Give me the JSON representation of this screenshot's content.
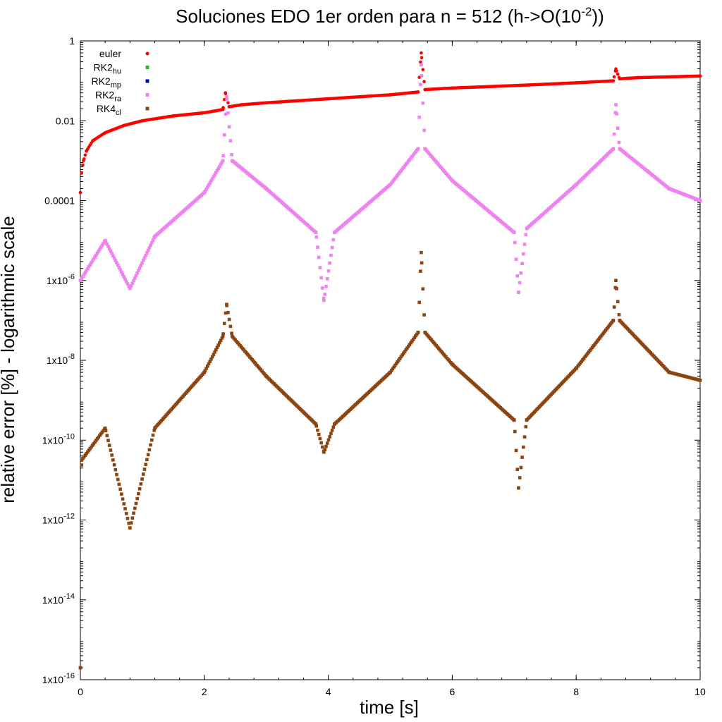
{
  "chart_data": {
    "type": "scatter",
    "title": {
      "main": "Soluciones EDO 1er orden para n = 512 (h->O(10",
      "sup": "-2",
      "tail": "))"
    },
    "xlabel": "time [s]",
    "ylabel": "relative error [%] - logarithmic scale",
    "x_range": [
      0,
      10
    ],
    "x_ticks": [
      {
        "value": 0,
        "label": "0"
      },
      {
        "value": 2,
        "label": "2"
      },
      {
        "value": 4,
        "label": "4"
      },
      {
        "value": 6,
        "label": "6"
      },
      {
        "value": 8,
        "label": "8"
      },
      {
        "value": 10,
        "label": "10"
      }
    ],
    "y_scale": "log",
    "y_range": [
      1e-16,
      1
    ],
    "y_ticks": [
      {
        "exp": 0,
        "label": "1"
      },
      {
        "exp": -2,
        "label": "0.01"
      },
      {
        "exp": -4,
        "label": "0.0001"
      },
      {
        "exp": -6,
        "label": "1x10",
        "sup": "-6"
      },
      {
        "exp": -8,
        "label": "1x10",
        "sup": "-8"
      },
      {
        "exp": -10,
        "label": "1x10",
        "sup": "-10"
      },
      {
        "exp": -12,
        "label": "1x10",
        "sup": "-12"
      },
      {
        "exp": -14,
        "label": "1x10",
        "sup": "-14"
      },
      {
        "exp": -16,
        "label": "1x10",
        "sup": "-16"
      }
    ],
    "grid": false,
    "legend": {
      "position": "top-left",
      "entries": [
        {
          "base": "euler",
          "sub": "",
          "color": "#ff0000"
        },
        {
          "base": "RK2",
          "sub": "hu",
          "color": "#00dd00"
        },
        {
          "base": "RK2",
          "sub": "mp",
          "color": "#0000cc"
        },
        {
          "base": "RK2",
          "sub": "ra",
          "color": "#ee82ee"
        },
        {
          "base": "RK4",
          "sub": "cl",
          "color": "#8b4513"
        }
      ]
    },
    "singularities": [
      0.8,
      3.93,
      7.07
    ],
    "jumps": [
      2.36,
      5.5,
      8.64
    ],
    "series": [
      {
        "name": "euler",
        "color": "#ff0000",
        "marker": "circle",
        "points": [
          [
            0,
            -3.8
          ],
          [
            0.02,
            -3.3
          ],
          [
            0.05,
            -3.0
          ],
          [
            0.1,
            -2.75
          ],
          [
            0.2,
            -2.5
          ],
          [
            0.4,
            -2.3
          ],
          [
            0.7,
            -2.12
          ],
          [
            1.0,
            -2.0
          ],
          [
            1.5,
            -1.88
          ],
          [
            2.0,
            -1.8
          ],
          [
            2.3,
            -1.72
          ],
          [
            2.34,
            -1.3
          ],
          [
            2.4,
            -1.65
          ],
          [
            2.6,
            -1.6
          ],
          [
            3.0,
            -1.55
          ],
          [
            4.0,
            -1.45
          ],
          [
            5.0,
            -1.35
          ],
          [
            5.45,
            -1.28
          ],
          [
            5.5,
            -0.3
          ],
          [
            5.56,
            -1.22
          ],
          [
            6.0,
            -1.18
          ],
          [
            7.0,
            -1.12
          ],
          [
            8.0,
            -1.05
          ],
          [
            8.6,
            -1.0
          ],
          [
            8.64,
            -0.7
          ],
          [
            8.7,
            -0.95
          ],
          [
            9.0,
            -0.92
          ],
          [
            10.0,
            -0.88
          ]
        ]
      },
      {
        "name": "RK2_ra",
        "color": "#ee82ee",
        "marker": "square",
        "points": [
          [
            0,
            -6.0
          ],
          [
            0.4,
            -5.0
          ],
          [
            0.8,
            -6.2
          ],
          [
            1.2,
            -4.9
          ],
          [
            2.0,
            -3.8
          ],
          [
            2.3,
            -3.0
          ],
          [
            2.36,
            -1.4
          ],
          [
            2.45,
            -3.0
          ],
          [
            3.0,
            -3.7
          ],
          [
            3.8,
            -4.8
          ],
          [
            3.93,
            -6.5
          ],
          [
            4.1,
            -4.8
          ],
          [
            5.0,
            -3.6
          ],
          [
            5.45,
            -2.7
          ],
          [
            5.5,
            -0.6
          ],
          [
            5.56,
            -2.7
          ],
          [
            6.0,
            -3.5
          ],
          [
            7.0,
            -4.8
          ],
          [
            7.07,
            -6.3
          ],
          [
            7.2,
            -4.7
          ],
          [
            8.0,
            -3.6
          ],
          [
            8.6,
            -2.7
          ],
          [
            8.64,
            -1.6
          ],
          [
            8.7,
            -2.7
          ],
          [
            9.5,
            -3.7
          ],
          [
            10.0,
            -4.0
          ]
        ]
      },
      {
        "name": "RK4_cl",
        "color": "#8b4513",
        "marker": "square",
        "points": [
          [
            0,
            -15.7
          ],
          [
            0.02,
            -10.5
          ],
          [
            0.4,
            -9.7
          ],
          [
            0.8,
            -12.2
          ],
          [
            1.2,
            -9.7
          ],
          [
            2.0,
            -8.3
          ],
          [
            2.3,
            -7.4
          ],
          [
            2.36,
            -6.6
          ],
          [
            2.45,
            -7.4
          ],
          [
            3.0,
            -8.4
          ],
          [
            3.8,
            -9.6
          ],
          [
            3.93,
            -10.3
          ],
          [
            4.1,
            -9.6
          ],
          [
            5.0,
            -8.3
          ],
          [
            5.45,
            -7.3
          ],
          [
            5.5,
            -5.3
          ],
          [
            5.56,
            -7.3
          ],
          [
            6.0,
            -8.1
          ],
          [
            7.0,
            -9.5
          ],
          [
            7.07,
            -11.2
          ],
          [
            7.2,
            -9.5
          ],
          [
            8.0,
            -8.2
          ],
          [
            8.6,
            -7.0
          ],
          [
            8.64,
            -6.0
          ],
          [
            8.7,
            -7.0
          ],
          [
            9.5,
            -8.3
          ],
          [
            10.0,
            -8.5
          ]
        ]
      }
    ]
  }
}
